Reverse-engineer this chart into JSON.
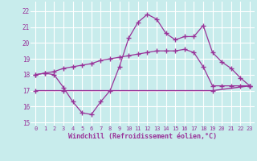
{
  "xlabel": "Windchill (Refroidissement éolien,°C)",
  "xlim": [
    -0.5,
    23.5
  ],
  "ylim": [
    14.8,
    22.6
  ],
  "yticks": [
    15,
    16,
    17,
    18,
    19,
    20,
    21,
    22
  ],
  "xticks": [
    0,
    1,
    2,
    3,
    4,
    5,
    6,
    7,
    8,
    9,
    10,
    11,
    12,
    13,
    14,
    15,
    16,
    17,
    18,
    19,
    20,
    21,
    22,
    23
  ],
  "bg_color": "#c8ecec",
  "grid_color": "#b0d8d8",
  "line_color": "#993399",
  "line1_x": [
    0,
    1,
    2,
    3,
    4,
    5,
    6,
    7,
    8,
    9,
    10,
    11,
    12,
    13,
    14,
    15,
    16,
    17,
    18,
    19,
    20,
    21,
    22,
    23
  ],
  "line1_y": [
    18.0,
    18.1,
    18.0,
    17.2,
    16.3,
    15.6,
    15.5,
    16.3,
    17.0,
    18.5,
    20.3,
    21.3,
    21.8,
    21.5,
    20.6,
    20.2,
    20.4,
    20.4,
    21.1,
    19.4,
    18.8,
    18.4,
    17.8,
    17.3
  ],
  "line2_x": [
    0,
    3,
    19,
    23
  ],
  "line2_y": [
    17.0,
    17.0,
    17.0,
    17.3
  ],
  "line3_x": [
    0,
    1,
    2,
    3,
    4,
    5,
    6,
    7,
    8,
    9,
    10,
    11,
    12,
    13,
    14,
    15,
    16,
    17,
    18,
    19,
    20,
    21,
    22,
    23
  ],
  "line3_y": [
    18.0,
    18.1,
    18.2,
    18.4,
    18.5,
    18.6,
    18.7,
    18.9,
    19.0,
    19.1,
    19.2,
    19.3,
    19.4,
    19.5,
    19.5,
    19.5,
    19.6,
    19.4,
    18.5,
    17.3,
    17.3,
    17.3,
    17.3,
    17.3
  ]
}
